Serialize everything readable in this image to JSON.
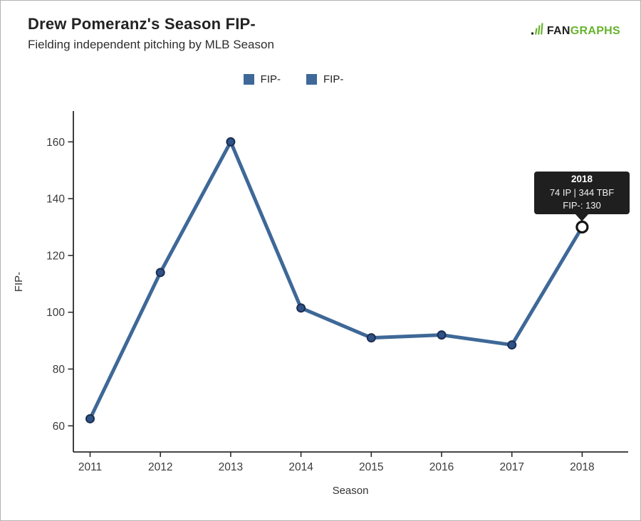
{
  "header": {
    "title": "Drew Pomeranz's Season FIP-",
    "subtitle": "Fielding independent pitching by MLB Season",
    "logo": {
      "fan": "FAN",
      "graphs": "GRAPHS",
      "icon": "fangraphs-chart-icon",
      "green": "#67b32e",
      "dark": "#222222"
    }
  },
  "legend": {
    "items": [
      {
        "label": "FIP-"
      },
      {
        "label": "FIP-"
      }
    ],
    "swatch_color": "#3F6899"
  },
  "tooltip": {
    "title": "2018",
    "stats": "74 IP | 344 TBF",
    "value": "FIP-: 130",
    "background": "#1f1f1f"
  },
  "chart_data": {
    "type": "line",
    "title": "Drew Pomeranz's Season FIP-",
    "subtitle": "Fielding independent pitching by MLB Season",
    "xlabel": "Season",
    "ylabel": "FIP-",
    "categories": [
      "2011",
      "2012",
      "2013",
      "2014",
      "2015",
      "2016",
      "2017",
      "2018"
    ],
    "series": [
      {
        "name": "FIP-",
        "values": [
          62.5,
          114,
          160,
          101.5,
          91,
          92,
          88.5,
          130
        ]
      }
    ],
    "yticks": [
      60,
      80,
      100,
      120,
      140,
      160
    ],
    "ylim": [
      50,
      170
    ],
    "grid": false,
    "legend_position": "top-center",
    "highlight": {
      "category": "2018",
      "value": 130,
      "tooltip_lines": [
        "2018",
        "74 IP | 344 TBF",
        "FIP-: 130"
      ]
    },
    "colors": {
      "line": "#3E6897",
      "marker_fill": "#2F5287",
      "marker_stroke": "#1B2E4F",
      "highlight_fill": "#ffffff",
      "highlight_stroke": "#141414",
      "axis": "#2b2b2b",
      "tick_label": "#3a3a3a"
    }
  }
}
